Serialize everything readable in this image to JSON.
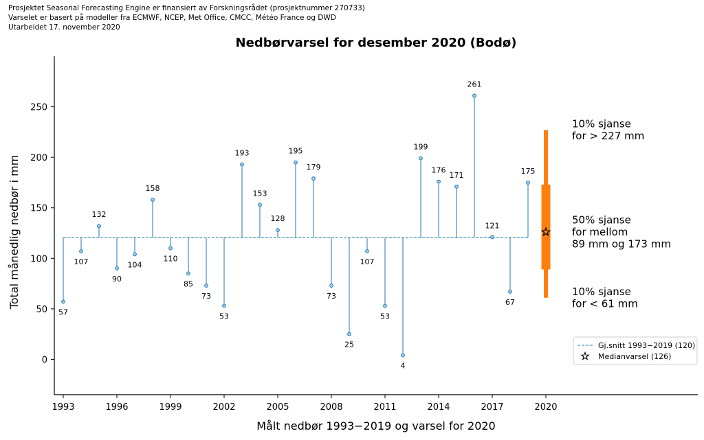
{
  "header": {
    "lines": [
      "Prosjektet Seasonal Forecasting Engine er finansiert av Forskningsrådet (prosjektnummer 270733)",
      "Varselet er basert på modeller fra ECMWF, NCEP, Met Office, CMCC, Météo France og DWD",
      "Utarbeidet 17. november 2020"
    ]
  },
  "chart_data": {
    "type": "stem",
    "title": "Nedbørvarsel for desember 2020 (Bodø)",
    "xlabel": "Målt nedbør 1993−2019 og varsel for 2020",
    "ylabel": "Total månedlig nedbør i mm",
    "xlim": [
      1992.5,
      2028.5
    ],
    "ylim": [
      -35,
      300
    ],
    "xticks": [
      1993,
      1996,
      1999,
      2002,
      2005,
      2008,
      2011,
      2014,
      2017,
      2020
    ],
    "yticks": [
      0,
      50,
      100,
      150,
      200,
      250
    ],
    "baseline": 120.5,
    "baseline_label": "Gj.snitt 1993−2019 (120)",
    "years": [
      1993,
      1994,
      1995,
      1996,
      1997,
      1998,
      1999,
      2000,
      2001,
      2002,
      2003,
      2004,
      2005,
      2006,
      2007,
      2008,
      2009,
      2010,
      2011,
      2012,
      2013,
      2014,
      2015,
      2016,
      2017,
      2018,
      2019
    ],
    "values": [
      57,
      107,
      132,
      90,
      104,
      158,
      110,
      85,
      73,
      53,
      193,
      153,
      128,
      195,
      179,
      73,
      25,
      107,
      53,
      4,
      199,
      176,
      171,
      261,
      121,
      67,
      175
    ],
    "forecast": {
      "year": 2020,
      "median": 126,
      "median_label": "Medianvarsel (126)",
      "p10": 61,
      "p25": 89,
      "p75": 173,
      "p90": 227,
      "color": "#ff7f0e"
    },
    "annotations": [
      {
        "lines": [
          "10% sjanse",
          "for > 227 mm"
        ],
        "y": 227
      },
      {
        "lines": [
          "50% sjanse",
          "for mellom",
          "89 mm og 173 mm"
        ],
        "y": 126
      },
      {
        "lines": [
          "10% sjanse",
          "for < 61 mm"
        ],
        "y": 61
      }
    ],
    "colors": {
      "stem": "#1f77b4",
      "marker_fill": "#a6cfe8",
      "forecast": "#ff7f0e"
    },
    "legend_position": "lower-right"
  }
}
